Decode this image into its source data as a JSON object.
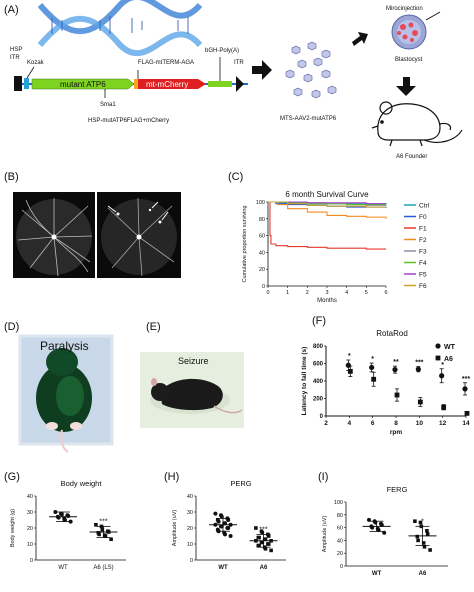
{
  "panels": {
    "a": "(A)",
    "b": "(B)",
    "c": "(C)",
    "d": "(D)",
    "e": "(E)",
    "f": "(F)",
    "g": "(G)",
    "h": "(H)",
    "i": "(I)"
  },
  "panel_a": {
    "hsp_itr": [
      "HSP",
      "ITR"
    ],
    "kozak": "Kozak",
    "flag": "FLAG-mtTERM-AGA",
    "bgh": "bGH-Poly(A)",
    "itr_right": "ITR",
    "mutant_atp6": "mutant ATP6",
    "mt_mcherry": "mt-mCherry",
    "sma1": "Sma1",
    "construct_name": "HSP-mutATP6FLAG+mCherry",
    "virus_name": "MTS-AAV2-mutATP6",
    "microinjection": "Mirocinjection",
    "blastocyst": "Blastocyst",
    "founder": "A6 Founder",
    "colors": {
      "helix": "#3a7fd6",
      "green_bar": "#7ed321",
      "red_bar": "#e02020",
      "blastocyst": "#9aa6d6"
    }
  },
  "panel_d": {
    "label": "Paralysis"
  },
  "panel_e": {
    "label": "Seizure"
  },
  "chart_data": [
    {
      "id": "survival",
      "type": "line",
      "title": "6 month Survival Curve",
      "xlabel": "Months",
      "ylabel": "Cumulative proportion surviving",
      "xlim": [
        0,
        6
      ],
      "ylim": [
        0,
        100
      ],
      "xticks": [
        0,
        1,
        2,
        3,
        4,
        5,
        6
      ],
      "yticks": [
        0,
        20,
        40,
        60,
        80,
        100
      ],
      "legend_position": "right",
      "series": [
        {
          "name": "Ctrl",
          "color": "#1fa3b3",
          "points": [
            [
              0,
              100
            ],
            [
              0.5,
              99
            ],
            [
              1,
              99
            ],
            [
              2,
              98
            ],
            [
              3,
              98
            ],
            [
              4,
              98
            ],
            [
              5,
              98
            ],
            [
              6,
              97
            ]
          ]
        },
        {
          "name": "F0",
          "color": "#2a5bd7",
          "points": [
            [
              0,
              100
            ],
            [
              0.4,
              98
            ],
            [
              1,
              97
            ],
            [
              2,
              96
            ],
            [
              3,
              95
            ],
            [
              4,
              94
            ],
            [
              5,
              94
            ],
            [
              6,
              93
            ]
          ]
        },
        {
          "name": "F1",
          "color": "#e53a2a",
          "points": [
            [
              0,
              100
            ],
            [
              0.1,
              60
            ],
            [
              0.15,
              50
            ],
            [
              0.4,
              48
            ],
            [
              1,
              47
            ],
            [
              2,
              46
            ],
            [
              3,
              45
            ],
            [
              4,
              45
            ],
            [
              5,
              44
            ],
            [
              6,
              44
            ]
          ]
        },
        {
          "name": "F2",
          "color": "#f28a1f",
          "points": [
            [
              0,
              100
            ],
            [
              0.5,
              97
            ],
            [
              1,
              92
            ],
            [
              2,
              88
            ],
            [
              3,
              84
            ],
            [
              4,
              83
            ],
            [
              5,
              82
            ],
            [
              6,
              80
            ]
          ]
        },
        {
          "name": "F3",
          "color": "#8a8fa8",
          "points": [
            [
              0,
              100
            ],
            [
              1,
              99
            ],
            [
              2,
              99
            ],
            [
              3,
              98
            ],
            [
              4,
              97
            ],
            [
              5,
              96
            ],
            [
              6,
              96
            ]
          ]
        },
        {
          "name": "F4",
          "color": "#5dbf2e",
          "points": [
            [
              0,
              100
            ],
            [
              1,
              99
            ],
            [
              2,
              98
            ],
            [
              3,
              98
            ],
            [
              4,
              97
            ],
            [
              5,
              97
            ],
            [
              6,
              96
            ]
          ]
        },
        {
          "name": "F5",
          "color": "#a23fd0",
          "points": [
            [
              0,
              100
            ],
            [
              1,
              100
            ],
            [
              2,
              99
            ],
            [
              3,
              99
            ],
            [
              4,
              99
            ],
            [
              5,
              98
            ],
            [
              6,
              98
            ]
          ]
        },
        {
          "name": "F6",
          "color": "#c9a227",
          "points": [
            [
              0,
              100
            ],
            [
              1,
              98
            ],
            [
              2,
              96
            ],
            [
              3,
              95
            ],
            [
              4,
              95
            ],
            [
              5,
              94
            ],
            [
              6,
              94
            ]
          ]
        }
      ]
    },
    {
      "id": "rotarod",
      "type": "scatter",
      "title": "RotaRod",
      "xlabel": "rpm",
      "ylabel": "Latency to fall time (s)",
      "xlim": [
        2,
        14
      ],
      "ylim": [
        0,
        800
      ],
      "xticks": [
        2,
        4,
        6,
        8,
        10,
        12,
        14
      ],
      "yticks": [
        0,
        200,
        400,
        600,
        800
      ],
      "legend_position": "top-right",
      "series": [
        {
          "name": "WT",
          "marker": "circle",
          "x": [
            4,
            6,
            8,
            10,
            12,
            14
          ],
          "y": [
            580,
            555,
            530,
            535,
            460,
            310
          ],
          "err": [
            60,
            50,
            40,
            30,
            80,
            70
          ]
        },
        {
          "name": "A6",
          "marker": "square",
          "x": [
            4,
            6,
            8,
            10,
            12,
            14
          ],
          "y": [
            510,
            420,
            240,
            160,
            100,
            30
          ],
          "err": [
            60,
            80,
            70,
            50,
            30,
            20
          ]
        }
      ],
      "annotations": [
        {
          "x": 4,
          "text": "*"
        },
        {
          "x": 6,
          "text": "*"
        },
        {
          "x": 8,
          "text": "**"
        },
        {
          "x": 10,
          "text": "***"
        },
        {
          "x": 12,
          "text": "*"
        },
        {
          "x": 14,
          "text": "***"
        }
      ]
    },
    {
      "id": "bodyweight",
      "type": "scatter",
      "title": "Body weight",
      "ylabel": "Body weight (g)",
      "ylim": [
        0,
        40
      ],
      "yticks": [
        0,
        10,
        20,
        30,
        40
      ],
      "categories": [
        "WT",
        "A6 (LS)"
      ],
      "mean": [
        27,
        17.5
      ],
      "sd": [
        3,
        3.5
      ],
      "significance": "***",
      "points": [
        [
          30,
          29,
          28.5,
          28,
          27.5,
          27,
          26.5,
          26,
          25,
          24
        ],
        [
          22,
          21,
          19,
          18,
          17.5,
          17,
          16,
          15.5,
          15,
          13
        ]
      ]
    },
    {
      "id": "perg",
      "type": "scatter",
      "title": "PERG",
      "ylabel": "Amplitude (uV)",
      "ylim": [
        0,
        40
      ],
      "yticks": [
        0,
        10,
        20,
        30,
        40
      ],
      "categories": [
        "WT",
        "A6"
      ],
      "mean": [
        22,
        12
      ],
      "sd": [
        4,
        4
      ],
      "significance": "***",
      "points": [
        [
          29,
          28,
          27,
          26,
          25,
          25,
          24,
          23,
          23,
          22,
          22,
          21,
          21,
          20,
          20,
          19,
          18,
          17,
          16,
          15
        ],
        [
          20,
          18,
          17,
          16,
          15,
          14,
          14,
          13,
          13,
          12,
          12,
          11,
          11,
          10,
          10,
          9,
          9,
          8,
          7,
          6
        ]
      ]
    },
    {
      "id": "ferg",
      "type": "scatter",
      "title": "FERG",
      "ylabel": "Amplitude (uV)",
      "ylim": [
        0,
        100
      ],
      "yticks": [
        0,
        20,
        40,
        60,
        80,
        100
      ],
      "categories": [
        "WT",
        "A6"
      ],
      "mean": [
        62,
        47
      ],
      "sd": [
        8,
        15
      ],
      "significance": "*",
      "points": [
        [
          72,
          70,
          68,
          66,
          64,
          62,
          60,
          58,
          56,
          52
        ],
        [
          70,
          68,
          62,
          55,
          50,
          46,
          40,
          36,
          30,
          25
        ]
      ]
    }
  ]
}
